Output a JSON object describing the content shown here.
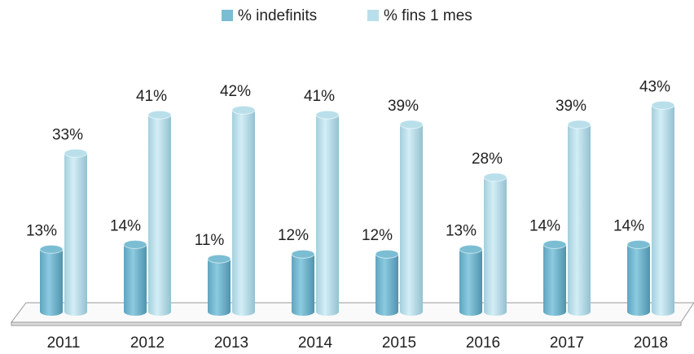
{
  "chart_data": {
    "type": "bar3d",
    "categories": [
      "2011",
      "2012",
      "2013",
      "2014",
      "2015",
      "2016",
      "2017",
      "2018"
    ],
    "series": [
      {
        "name": "% indefinits",
        "color": "#7bbdd3",
        "values": [
          13,
          14,
          11,
          12,
          12,
          13,
          14,
          14
        ],
        "value_labels": [
          "13%",
          "14%",
          "11%",
          "12%",
          "12%",
          "13%",
          "14%",
          "14%"
        ]
      },
      {
        "name": "% fins 1 mes",
        "color": "#b9dfea",
        "values": [
          33,
          41,
          42,
          41,
          39,
          28,
          39,
          43
        ],
        "value_labels": [
          "33%",
          "41%",
          "42%",
          "41%",
          "39%",
          "28%",
          "39%",
          "43%"
        ]
      }
    ],
    "legend": "top"
  }
}
